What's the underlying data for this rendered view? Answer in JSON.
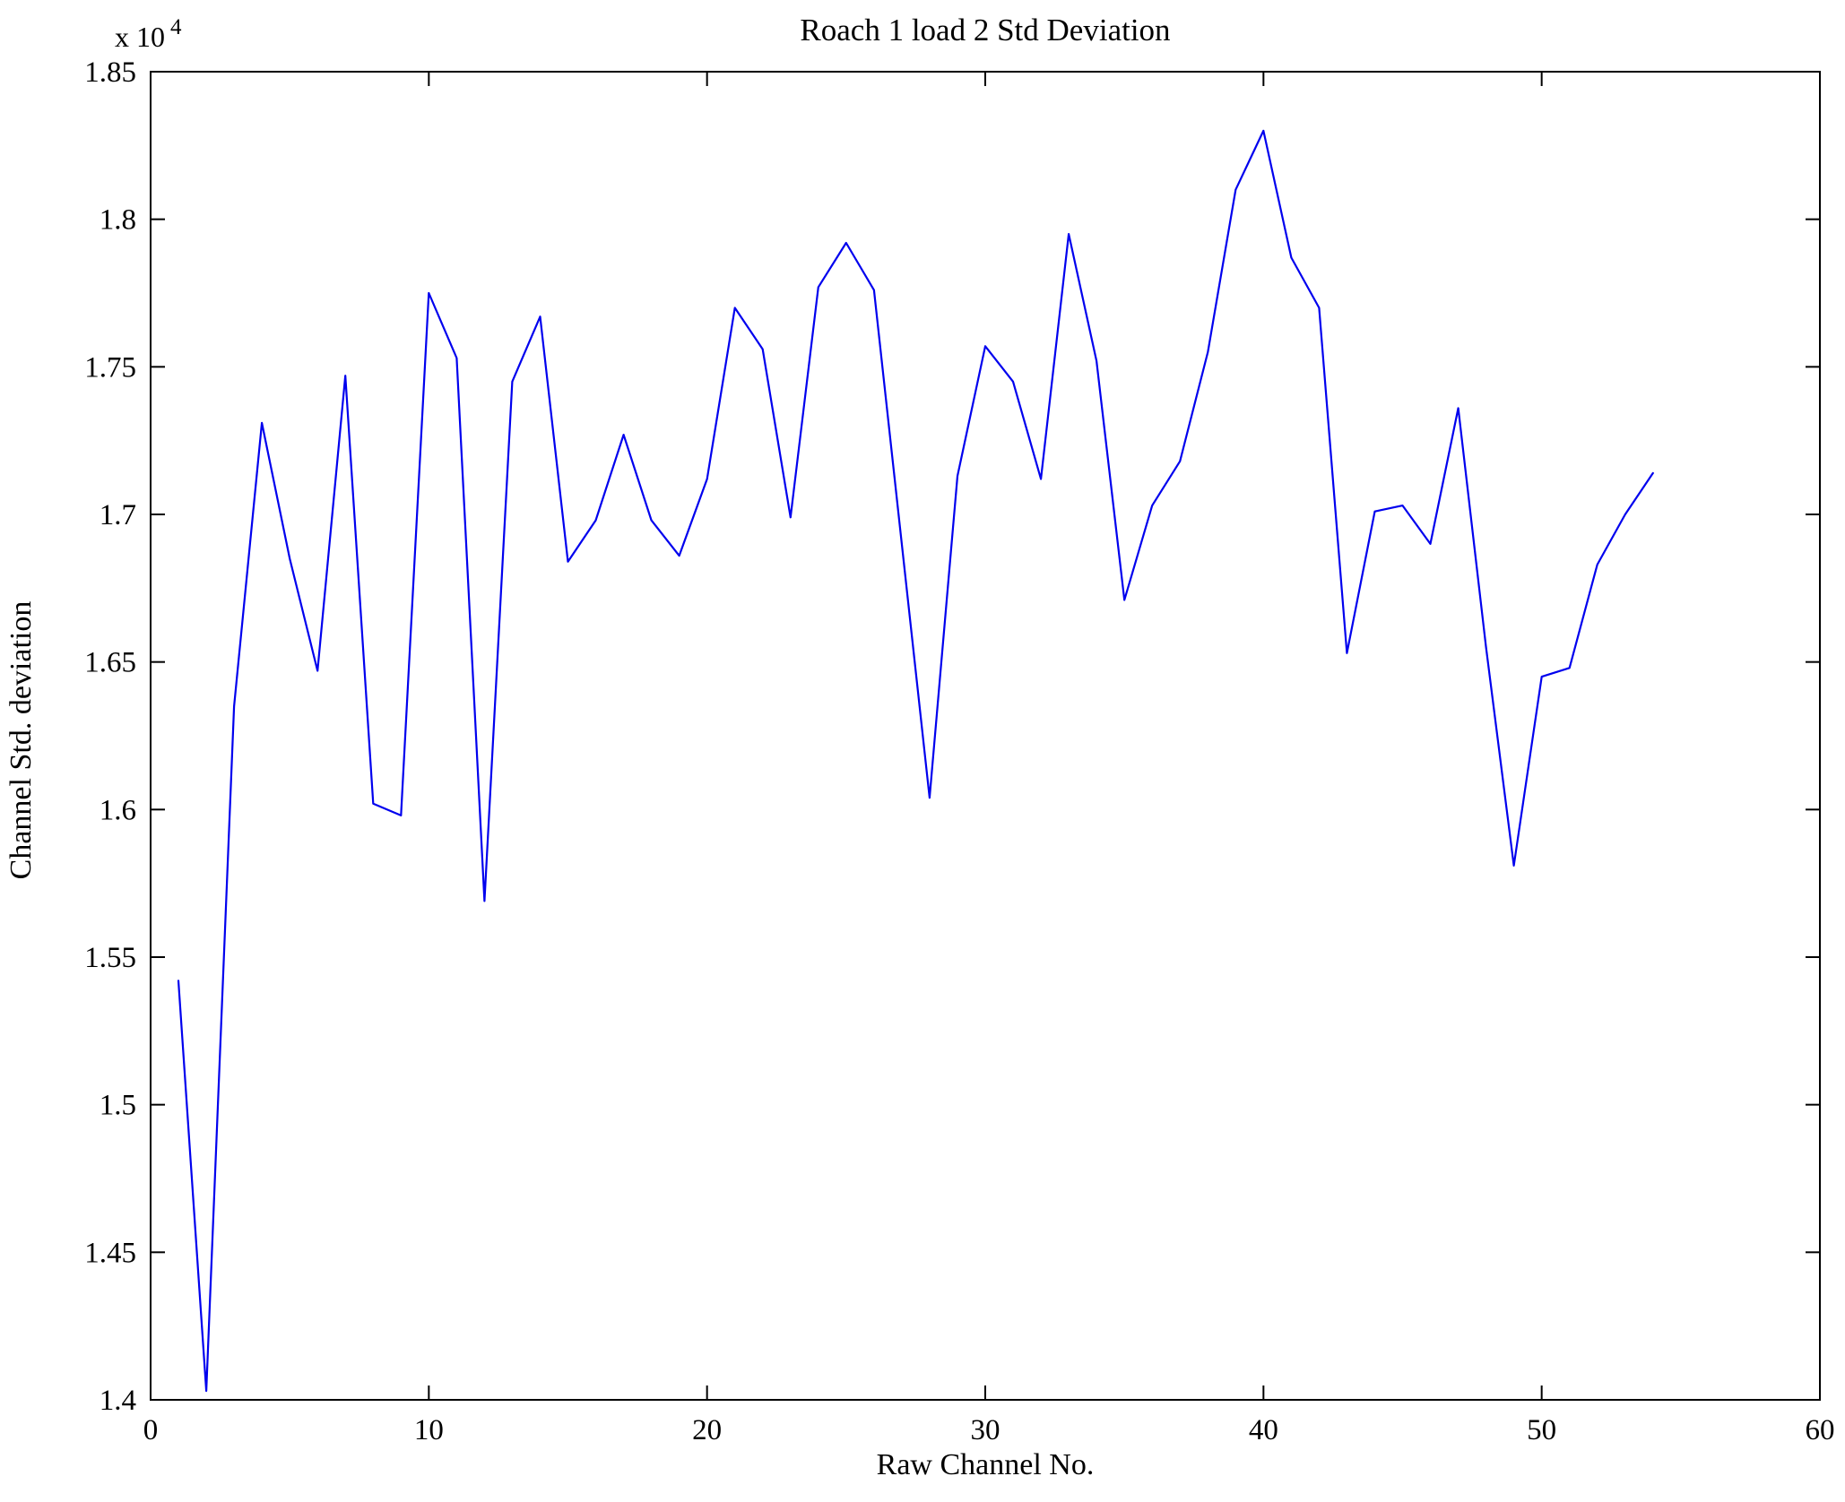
{
  "chart_data": {
    "type": "line",
    "title": "Roach 1 load 2 Std Deviation",
    "xlabel": "Raw Channel No.",
    "ylabel": "Channel Std. deviation",
    "y_multiplier_base": "x 10",
    "y_multiplier_exp": "4",
    "line_color": "#0000ee",
    "grid": false,
    "legend": "none",
    "xlim": [
      0,
      60
    ],
    "ylim": [
      14000,
      18500
    ],
    "xticks": [
      0,
      10,
      20,
      30,
      40,
      50,
      60
    ],
    "xtick_labels": [
      "0",
      "10",
      "20",
      "30",
      "40",
      "50",
      "60"
    ],
    "yticks": [
      14000,
      14500,
      15000,
      15500,
      16000,
      16500,
      17000,
      17500,
      18000,
      18500
    ],
    "ytick_labels": [
      "1.4",
      "1.45",
      "1.5",
      "1.55",
      "1.6",
      "1.65",
      "1.7",
      "1.75",
      "1.8",
      "1.85"
    ],
    "x": [
      1,
      2,
      3,
      4,
      5,
      6,
      7,
      8,
      9,
      10,
      11,
      12,
      13,
      14,
      15,
      16,
      17,
      18,
      19,
      20,
      21,
      22,
      23,
      24,
      25,
      26,
      27,
      28,
      29,
      30,
      31,
      32,
      33,
      34,
      35,
      36,
      37,
      38,
      39,
      40,
      41,
      42,
      43,
      44,
      45,
      46,
      47,
      48,
      49,
      50,
      51,
      52,
      53,
      54
    ],
    "y": [
      15420,
      14030,
      16350,
      17310,
      16850,
      16470,
      17470,
      16020,
      15980,
      17750,
      17530,
      15690,
      17450,
      17670,
      16840,
      16980,
      17270,
      16980,
      16860,
      17120,
      17700,
      17560,
      16990,
      17770,
      17920,
      17760,
      16900,
      16040,
      17130,
      17570,
      17450,
      17120,
      17950,
      17520,
      16710,
      17030,
      17180,
      17550,
      18100,
      18300,
      17870,
      17700,
      16530,
      17010,
      17030,
      16900,
      17360,
      16550,
      15810,
      16450,
      16480,
      16830,
      17000,
      17140
    ]
  }
}
